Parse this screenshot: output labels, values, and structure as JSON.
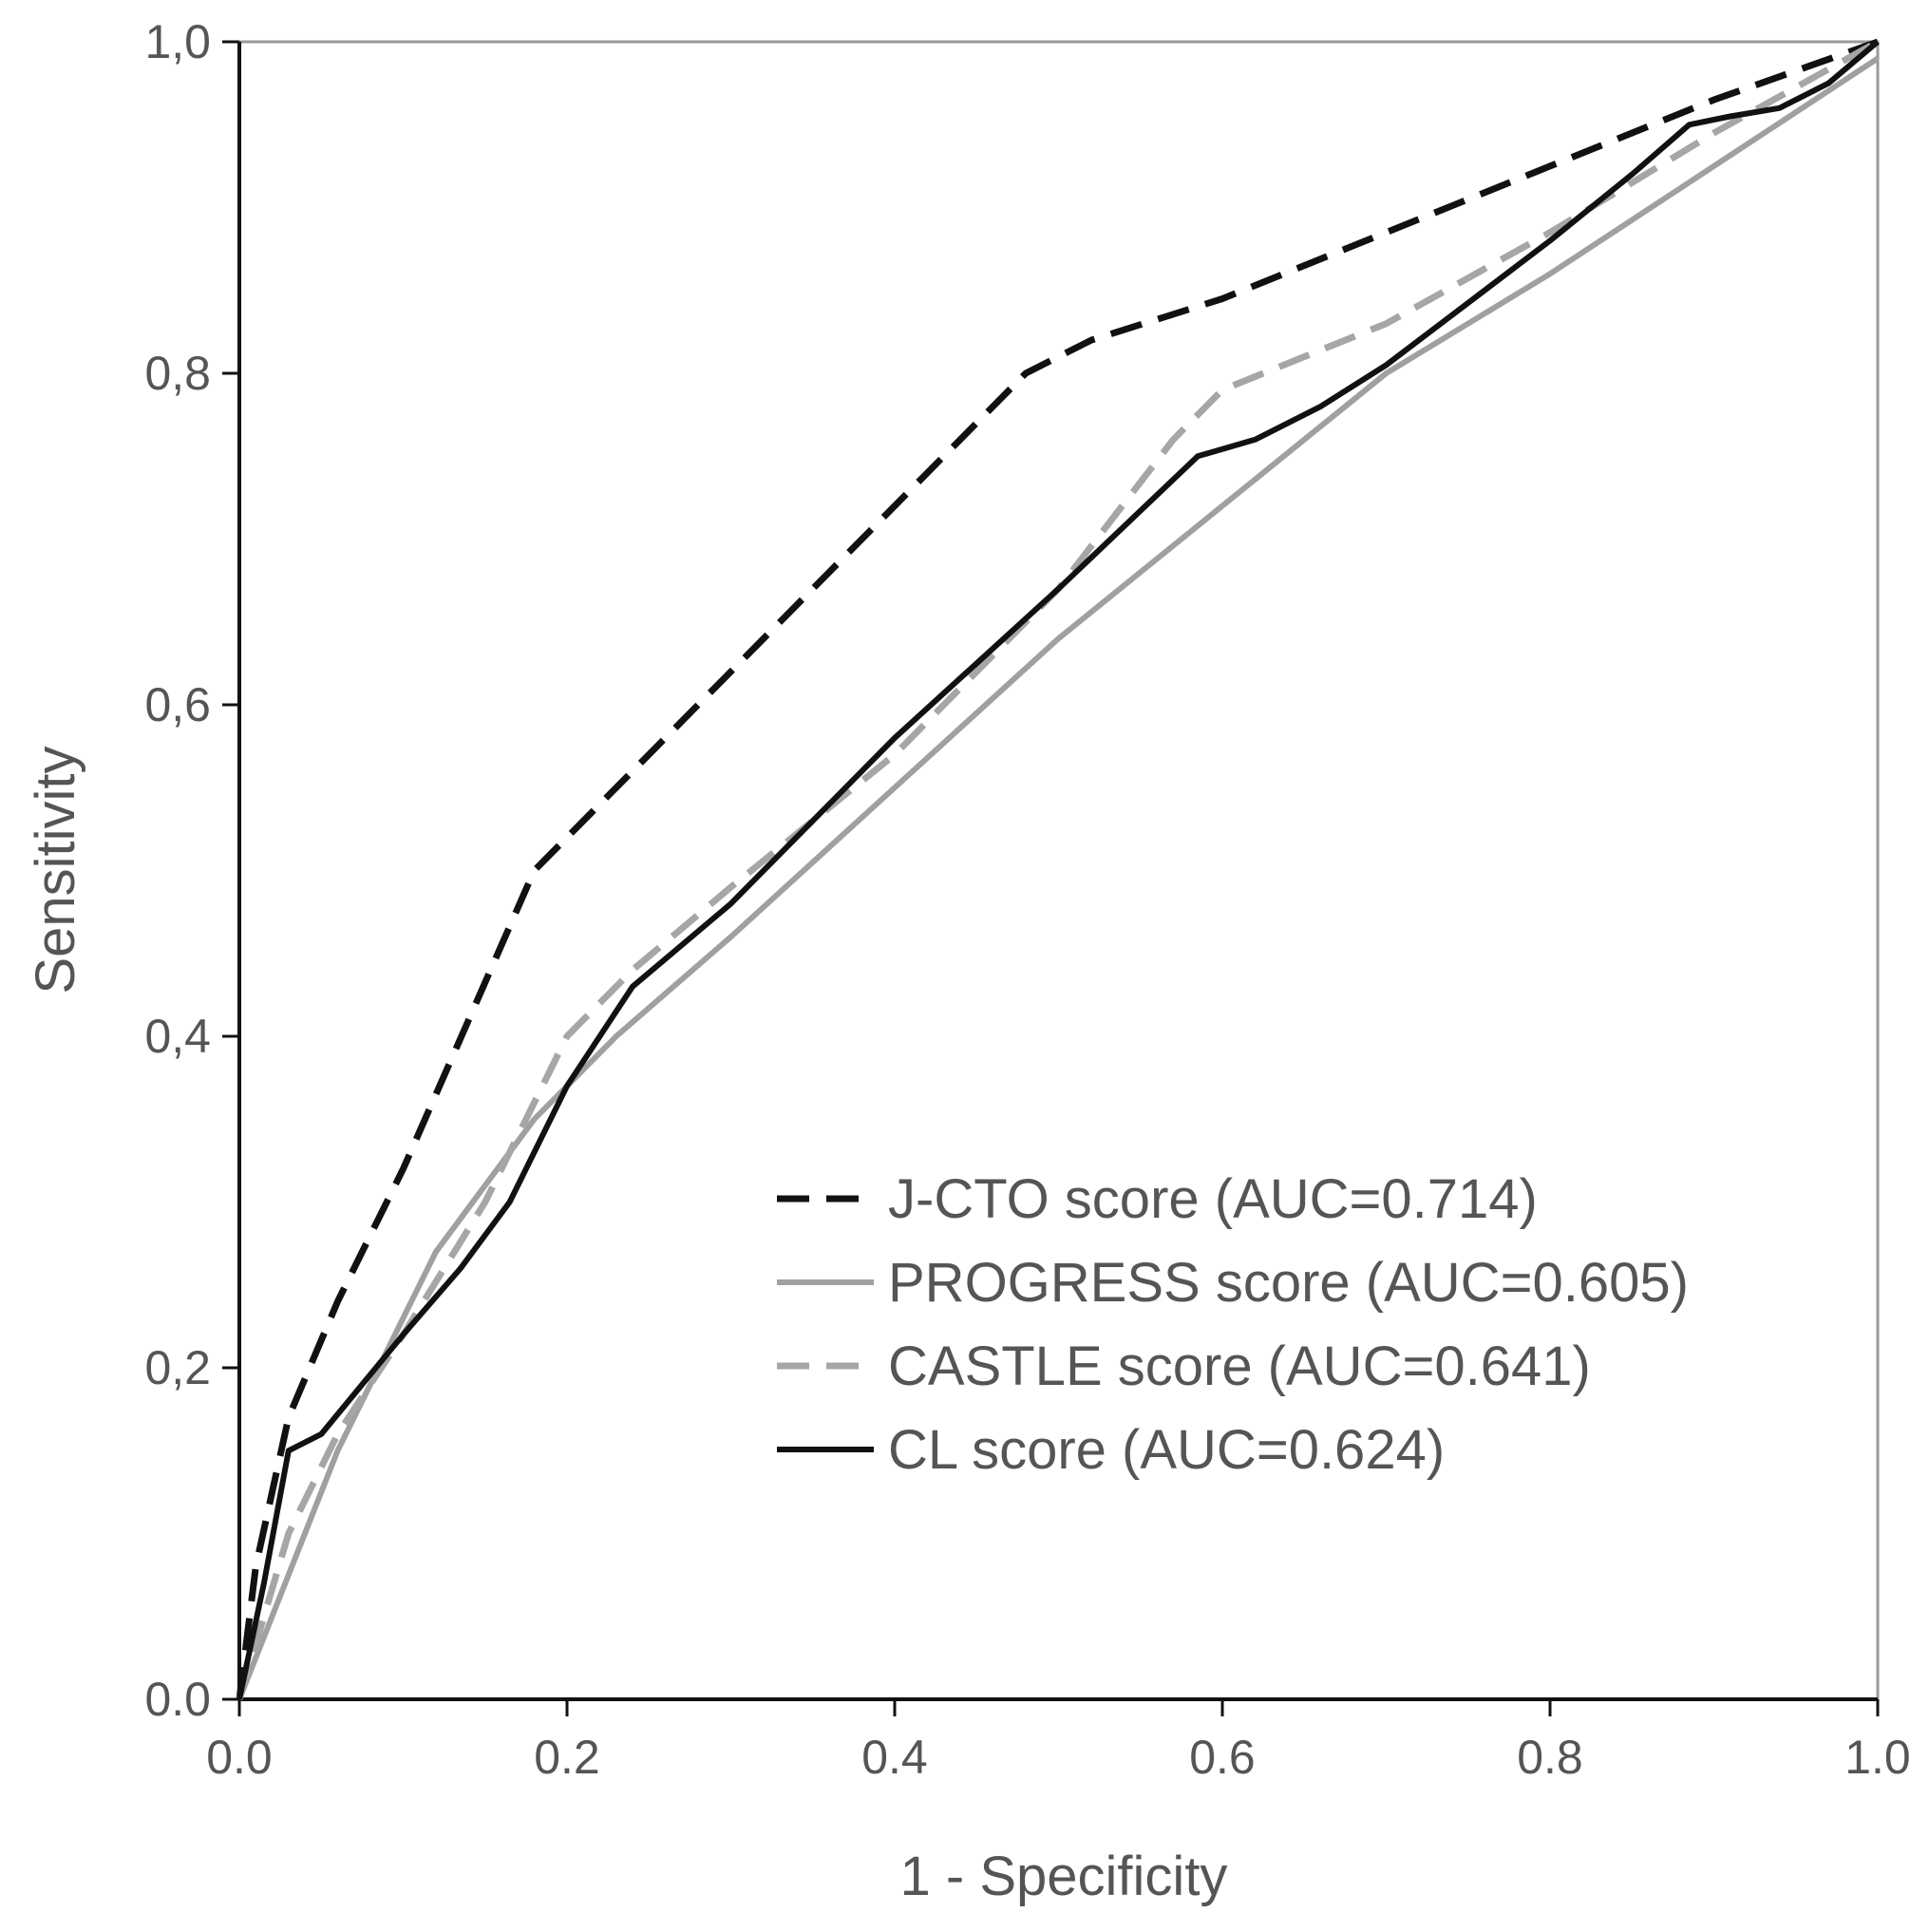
{
  "chart_data": {
    "type": "line",
    "title": "",
    "xlabel": "1 - Specificity",
    "ylabel": "Sensitivity",
    "xlim": [
      0.0,
      1.0
    ],
    "ylim": [
      0.0,
      1.0
    ],
    "xticks": [
      "0.0",
      "0.2",
      "0.4",
      "0.6",
      "0.8",
      "1.0"
    ],
    "yticks": [
      "0.0",
      "0,2",
      "0,4",
      "0,6",
      "0,8",
      "1,0"
    ],
    "grid": false,
    "legend_position": "bottom-right",
    "series": [
      {
        "name": "J-CTO score (AUC=0.714)",
        "color": "#111111",
        "dash": "dashed",
        "x": [
          0.0,
          0.01,
          0.03,
          0.06,
          0.1,
          0.14,
          0.18,
          0.2,
          0.24,
          0.3,
          0.36,
          0.42,
          0.46,
          0.48,
          0.52,
          0.6,
          0.7,
          0.8,
          0.9,
          1.0
        ],
        "y": [
          0.0,
          0.08,
          0.17,
          0.24,
          0.32,
          0.41,
          0.5,
          0.52,
          0.56,
          0.62,
          0.68,
          0.74,
          0.78,
          0.8,
          0.82,
          0.845,
          0.885,
          0.925,
          0.965,
          1.0
        ]
      },
      {
        "name": "PROGRESS score (AUC=0.605)",
        "color": "#a0a0a0",
        "dash": "solid",
        "x": [
          0.0,
          0.06,
          0.12,
          0.18,
          0.23,
          0.3,
          0.4,
          0.5,
          0.6,
          0.7,
          0.8,
          0.9,
          1.0
        ],
        "y": [
          0.0,
          0.15,
          0.27,
          0.35,
          0.4,
          0.46,
          0.55,
          0.64,
          0.72,
          0.8,
          0.86,
          0.925,
          0.99
        ]
      },
      {
        "name": "CASTLE score (AUC=0.641)",
        "color": "#a6a6a6",
        "dash": "dashed",
        "x": [
          0.0,
          0.03,
          0.06,
          0.1,
          0.15,
          0.18,
          0.2,
          0.24,
          0.3,
          0.4,
          0.5,
          0.57,
          0.6,
          0.65,
          0.7,
          0.8,
          0.9,
          1.0
        ],
        "y": [
          0.0,
          0.1,
          0.16,
          0.22,
          0.3,
          0.36,
          0.4,
          0.44,
          0.49,
          0.57,
          0.67,
          0.76,
          0.79,
          0.81,
          0.83,
          0.885,
          0.945,
          1.0
        ]
      },
      {
        "name": "CL score (AUC=0.624)",
        "color": "#111111",
        "dash": "solid",
        "x": [
          0.0,
          0.015,
          0.03,
          0.05,
          0.1,
          0.135,
          0.165,
          0.2,
          0.24,
          0.3,
          0.4,
          0.5,
          0.585,
          0.62,
          0.66,
          0.7,
          0.76,
          0.8,
          0.85,
          0.885,
          0.91,
          0.94,
          0.97,
          1.0
        ],
        "y": [
          0.0,
          0.07,
          0.15,
          0.16,
          0.22,
          0.26,
          0.3,
          0.37,
          0.43,
          0.48,
          0.58,
          0.67,
          0.75,
          0.76,
          0.78,
          0.805,
          0.85,
          0.88,
          0.92,
          0.95,
          0.955,
          0.96,
          0.975,
          1.0
        ]
      }
    ]
  }
}
